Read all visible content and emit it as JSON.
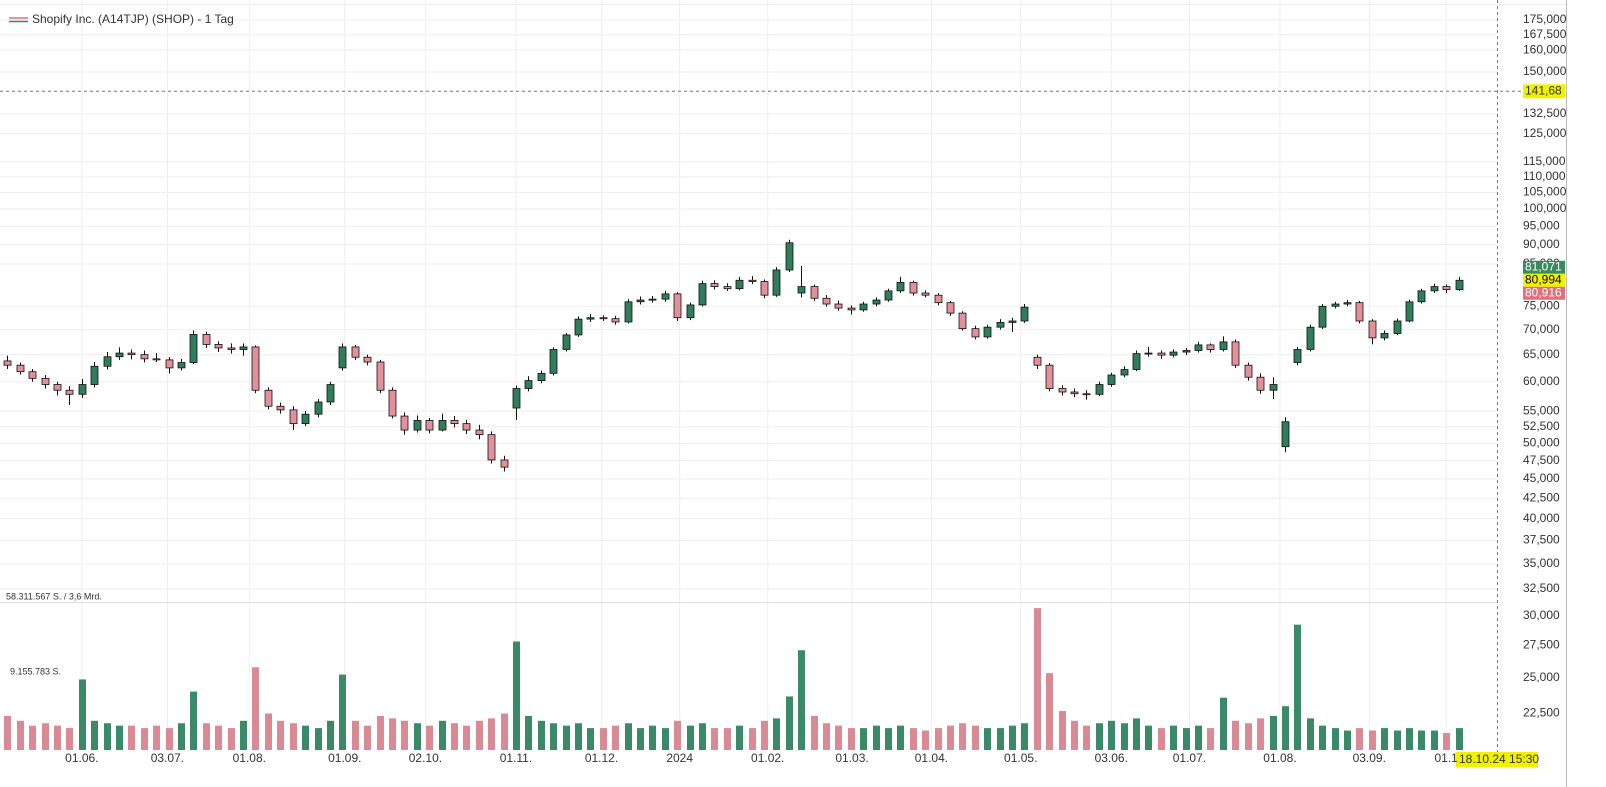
{
  "chart_data": {
    "type": "candlestick",
    "title": "Shopify Inc. (A14TJP) (SHOP) - 1 Tag",
    "log": true,
    "grid": true,
    "up_color": "#2f7d5a",
    "down_color": "#e3909b",
    "volume_up_color": "#3a8a68",
    "volume_down_color": "#d98a94",
    "ylim": [
      20.18,
      185.6
    ],
    "yticks": [
      {
        "value": 175,
        "label": "175,000"
      },
      {
        "value": 167.5,
        "label": "167,500"
      },
      {
        "value": 160,
        "label": "160,000"
      },
      {
        "value": 150,
        "label": "150,000"
      },
      {
        "value": 132.5,
        "label": "132,500"
      },
      {
        "value": 125,
        "label": "125,000"
      },
      {
        "value": 115,
        "label": "115,000"
      },
      {
        "value": 110,
        "label": "110,000"
      },
      {
        "value": 105,
        "label": "105,000"
      },
      {
        "value": 100,
        "label": "100,000"
      },
      {
        "value": 95,
        "label": "95,000"
      },
      {
        "value": 90,
        "label": "90,000"
      },
      {
        "value": 85,
        "label": "85,000"
      },
      {
        "value": 75,
        "label": "75,000"
      },
      {
        "value": 70,
        "label": "70,000"
      },
      {
        "value": 65,
        "label": "65,000"
      },
      {
        "value": 60,
        "label": "60,000"
      },
      {
        "value": 55,
        "label": "55,000"
      },
      {
        "value": 52.5,
        "label": "52,500"
      },
      {
        "value": 50,
        "label": "50,000"
      },
      {
        "value": 47.5,
        "label": "47,500"
      },
      {
        "value": 45,
        "label": "45,000"
      },
      {
        "value": 42.5,
        "label": "42,500"
      },
      {
        "value": 40,
        "label": "40,000"
      },
      {
        "value": 37.5,
        "label": "37,500"
      },
      {
        "value": 35,
        "label": "35,000"
      },
      {
        "value": 32.5,
        "label": "32,500"
      },
      {
        "value": 30,
        "label": "30,000"
      },
      {
        "value": 27.5,
        "label": "27,500"
      },
      {
        "value": 25,
        "label": "25,000"
      },
      {
        "value": 22.5,
        "label": "22,500"
      }
    ],
    "xlim": [
      -0.6,
      120.1
    ],
    "xticks": [
      {
        "value": 6.0,
        "label": "01.06."
      },
      {
        "value": 12.9,
        "label": "03.07."
      },
      {
        "value": 19.5,
        "label": "01.08."
      },
      {
        "value": 27.2,
        "label": "01.09."
      },
      {
        "value": 33.7,
        "label": "02.10."
      },
      {
        "value": 41.0,
        "label": "01.11."
      },
      {
        "value": 47.9,
        "label": "01.12."
      },
      {
        "value": 54.2,
        "label": "2024"
      },
      {
        "value": 61.3,
        "label": "01.02."
      },
      {
        "value": 68.1,
        "label": "01.03."
      },
      {
        "value": 74.5,
        "label": "01.04."
      },
      {
        "value": 81.7,
        "label": "01.05."
      },
      {
        "value": 89.0,
        "label": "03.06."
      },
      {
        "value": 95.3,
        "label": "01.07."
      },
      {
        "value": 102.6,
        "label": "01.08."
      },
      {
        "value": 109.8,
        "label": "03.09."
      },
      {
        "value": 116.0,
        "label": "01.1"
      }
    ],
    "crosshair": {
      "value": 141.68,
      "label": "141,68"
    },
    "price_labels": [
      {
        "value": 81.071,
        "label": "81,071",
        "color": "#3a8a5f",
        "text_color": "#ffffff"
      },
      {
        "value": 80.994,
        "label": "80,994",
        "color": "#f2f200",
        "text_color": "#000000"
      },
      {
        "value": 80.916,
        "label": "80,916",
        "color": "#e0707c",
        "text_color": "#ffffff"
      }
    ],
    "time_label": "18.10.24 15:30",
    "volume_max_label": "58.311.567 S. / 3,6 Mrd.",
    "volume_level_label": "9.155.783 S.",
    "volume_ylim": [
      0,
      60
    ],
    "candles": [
      [
        63.8,
        64.8,
        62.3,
        63.0
      ],
      [
        63.0,
        63.5,
        61.3,
        61.8
      ],
      [
        61.8,
        62.3,
        60.0,
        60.6
      ],
      [
        60.6,
        61.2,
        58.8,
        59.5
      ],
      [
        59.5,
        60.0,
        57.6,
        58.5
      ],
      [
        58.5,
        59.2,
        56.0,
        57.8
      ],
      [
        57.8,
        60.5,
        57.2,
        59.5
      ],
      [
        59.5,
        63.6,
        59.0,
        62.8
      ],
      [
        62.8,
        65.5,
        62.2,
        64.6
      ],
      [
        64.6,
        66.4,
        64.0,
        65.3
      ],
      [
        65.3,
        66.0,
        64.1,
        65.0
      ],
      [
        65.0,
        65.8,
        63.5,
        64.2
      ],
      [
        64.2,
        65.3,
        63.6,
        64.0
      ],
      [
        64.0,
        64.5,
        61.5,
        62.5
      ],
      [
        62.5,
        64.2,
        62.0,
        63.5
      ],
      [
        63.5,
        69.8,
        63.2,
        69.0
      ],
      [
        69.0,
        69.6,
        66.3,
        67.0
      ],
      [
        67.0,
        67.6,
        65.5,
        66.3
      ],
      [
        66.3,
        67.2,
        65.2,
        66.0
      ],
      [
        66.0,
        67.2,
        64.8,
        66.5
      ],
      [
        66.5,
        66.8,
        58.0,
        58.5
      ],
      [
        58.5,
        59.0,
        55.3,
        55.8
      ],
      [
        55.8,
        56.4,
        54.6,
        55.2
      ],
      [
        55.2,
        55.8,
        52.0,
        53.0
      ],
      [
        53.0,
        55.0,
        52.6,
        54.5
      ],
      [
        54.5,
        57.0,
        54.0,
        56.5
      ],
      [
        56.5,
        60.0,
        56.0,
        59.5
      ],
      [
        62.5,
        67.2,
        62.0,
        66.5
      ],
      [
        66.5,
        66.9,
        64.0,
        64.5
      ],
      [
        64.5,
        65.0,
        63.0,
        63.6
      ],
      [
        63.6,
        64.0,
        58.0,
        58.5
      ],
      [
        58.5,
        59.0,
        53.8,
        54.2
      ],
      [
        54.2,
        54.8,
        51.3,
        52.0
      ],
      [
        52.0,
        54.3,
        51.6,
        53.5
      ],
      [
        53.5,
        53.9,
        51.5,
        52.0
      ],
      [
        52.0,
        54.6,
        51.8,
        53.5
      ],
      [
        53.5,
        54.2,
        52.4,
        53.0
      ],
      [
        53.0,
        53.6,
        51.4,
        52.0
      ],
      [
        52.0,
        52.8,
        50.6,
        51.3
      ],
      [
        51.3,
        51.8,
        47.1,
        47.6
      ],
      [
        47.6,
        48.2,
        46.0,
        46.6
      ],
      [
        55.5,
        59.3,
        53.6,
        58.8
      ],
      [
        58.8,
        61.0,
        58.3,
        60.2
      ],
      [
        60.2,
        62.0,
        59.7,
        61.5
      ],
      [
        61.5,
        66.4,
        61.1,
        66.0
      ],
      [
        66.0,
        69.3,
        65.6,
        68.9
      ],
      [
        68.9,
        72.8,
        68.5,
        72.2
      ],
      [
        72.2,
        73.3,
        71.6,
        72.5
      ],
      [
        72.5,
        73.0,
        71.8,
        72.3
      ],
      [
        72.3,
        72.9,
        71.0,
        71.6
      ],
      [
        71.6,
        76.6,
        71.3,
        76.0
      ],
      [
        76.0,
        77.2,
        75.4,
        76.4
      ],
      [
        76.4,
        77.3,
        75.8,
        76.6
      ],
      [
        76.6,
        78.5,
        76.0,
        77.8
      ],
      [
        77.8,
        78.2,
        71.8,
        72.5
      ],
      [
        72.5,
        75.8,
        72.0,
        75.3
      ],
      [
        75.3,
        80.9,
        75.0,
        80.2
      ],
      [
        80.2,
        81.0,
        78.8,
        79.5
      ],
      [
        79.5,
        80.3,
        78.5,
        79.0
      ],
      [
        79.0,
        81.8,
        78.6,
        81.0
      ],
      [
        81.0,
        82.0,
        80.1,
        80.7
      ],
      [
        80.7,
        81.2,
        76.8,
        77.5
      ],
      [
        77.5,
        84.2,
        77.1,
        83.5
      ],
      [
        83.5,
        91.3,
        83.0,
        90.5
      ],
      [
        78.0,
        84.5,
        77.0,
        79.5
      ],
      [
        79.5,
        80.0,
        76.2,
        76.8
      ],
      [
        76.8,
        77.5,
        74.9,
        75.5
      ],
      [
        75.5,
        76.3,
        74.0,
        74.6
      ],
      [
        74.6,
        75.2,
        73.2,
        74.2
      ],
      [
        74.2,
        76.0,
        73.8,
        75.5
      ],
      [
        75.5,
        77.0,
        75.0,
        76.4
      ],
      [
        76.4,
        79.0,
        76.0,
        78.5
      ],
      [
        78.5,
        81.8,
        78.0,
        80.5
      ],
      [
        80.5,
        80.9,
        77.4,
        78.0
      ],
      [
        78.0,
        78.6,
        77.0,
        77.5
      ],
      [
        77.5,
        78.0,
        75.2,
        75.8
      ],
      [
        75.8,
        76.2,
        72.9,
        73.5
      ],
      [
        73.5,
        73.9,
        69.8,
        70.2
      ],
      [
        70.2,
        70.8,
        68.0,
        68.5
      ],
      [
        68.5,
        71.0,
        68.1,
        70.5
      ],
      [
        70.5,
        72.2,
        70.0,
        71.5
      ],
      [
        71.5,
        72.5,
        69.5,
        71.8
      ],
      [
        71.8,
        75.5,
        71.4,
        74.8
      ],
      [
        64.5,
        65.0,
        62.3,
        63.0
      ],
      [
        63.0,
        63.4,
        58.3,
        58.8
      ],
      [
        58.8,
        59.4,
        57.6,
        58.2
      ],
      [
        58.2,
        58.8,
        57.3,
        57.9
      ],
      [
        57.9,
        58.5,
        56.9,
        57.8
      ],
      [
        57.8,
        60.0,
        57.5,
        59.5
      ],
      [
        59.5,
        61.6,
        59.1,
        61.2
      ],
      [
        61.2,
        62.8,
        60.8,
        62.2
      ],
      [
        62.2,
        65.8,
        61.9,
        65.2
      ],
      [
        65.2,
        66.5,
        64.6,
        65.3
      ],
      [
        65.3,
        65.8,
        64.2,
        64.9
      ],
      [
        64.9,
        66.0,
        64.5,
        65.5
      ],
      [
        65.5,
        66.3,
        64.9,
        65.8
      ],
      [
        65.8,
        67.5,
        65.4,
        66.9
      ],
      [
        66.9,
        67.2,
        65.4,
        66.0
      ],
      [
        66.0,
        68.6,
        65.6,
        67.5
      ],
      [
        67.5,
        68.0,
        62.5,
        63.0
      ],
      [
        63.0,
        63.5,
        60.2,
        60.8
      ],
      [
        60.8,
        61.5,
        57.9,
        58.5
      ],
      [
        58.5,
        60.8,
        57.0,
        59.5
      ],
      [
        49.5,
        54.0,
        48.7,
        53.3
      ],
      [
        63.5,
        66.5,
        63.0,
        66.0
      ],
      [
        66.0,
        71.0,
        65.6,
        70.5
      ],
      [
        70.5,
        75.5,
        70.1,
        75.0
      ],
      [
        75.0,
        76.0,
        74.5,
        75.5
      ],
      [
        75.5,
        76.4,
        75.0,
        75.8
      ],
      [
        75.8,
        76.2,
        71.3,
        71.8
      ],
      [
        71.8,
        72.2,
        67.0,
        68.3
      ],
      [
        68.3,
        69.8,
        67.8,
        69.2
      ],
      [
        69.2,
        72.3,
        68.9,
        71.8
      ],
      [
        71.8,
        76.5,
        71.5,
        76.0
      ],
      [
        76.0,
        79.0,
        75.6,
        78.5
      ],
      [
        78.5,
        80.2,
        78.0,
        79.5
      ],
      [
        79.5,
        80.0,
        78.0,
        78.8
      ],
      [
        78.8,
        81.8,
        78.5,
        81.0
      ]
    ],
    "volume": [
      14,
      12,
      10,
      11,
      10,
      9,
      29,
      12,
      11,
      10,
      10,
      9,
      10,
      9,
      11,
      24,
      11,
      10,
      9,
      12,
      34,
      15,
      12,
      11,
      10,
      9,
      12,
      31,
      12,
      10,
      14,
      13,
      12,
      11,
      10,
      12,
      11,
      10,
      12,
      13,
      15,
      44.6,
      14,
      12,
      11,
      10,
      11,
      9,
      9,
      10,
      11,
      9,
      10,
      9,
      12,
      10,
      11,
      9,
      9,
      10,
      9,
      12,
      13,
      22,
      41,
      14,
      11,
      10,
      9,
      9,
      10,
      9,
      10,
      9,
      8,
      9,
      10,
      11,
      10,
      9,
      9,
      10,
      11,
      58.3,
      31.6,
      16,
      12,
      10,
      11,
      12,
      11,
      13,
      10,
      9,
      10,
      9,
      10,
      9,
      21.5,
      12,
      11,
      13,
      14,
      18,
      51.5,
      13,
      10,
      9,
      8,
      9,
      8,
      9,
      8,
      9,
      8,
      8,
      7,
      9
    ]
  }
}
